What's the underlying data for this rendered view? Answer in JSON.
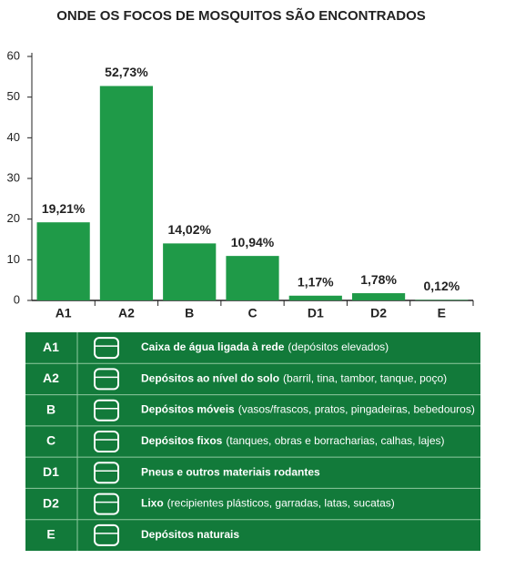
{
  "chart_data": {
    "type": "bar",
    "title": "ONDE OS FOCOS DE MOSQUITOS SÃO ENCONTRADOS",
    "categories": [
      "A1",
      "A2",
      "B",
      "C",
      "D1",
      "D2",
      "E"
    ],
    "values": [
      19.21,
      52.73,
      14.02,
      10.94,
      1.17,
      1.78,
      0.12
    ],
    "value_labels": [
      "19,21%",
      "52,73%",
      "14,02%",
      "10,94%",
      "1,17%",
      "1,78%",
      "0,12%"
    ],
    "color": "#1f9a48",
    "ylim": [
      0,
      60
    ],
    "yticks": [
      0,
      10,
      20,
      30,
      40,
      50,
      60
    ],
    "grid": false
  },
  "table": {
    "rows": [
      {
        "code": "A1",
        "title": "Caixa de água ligada à rede",
        "detail": "(depósitos elevados)"
      },
      {
        "code": "A2",
        "title": "Depósitos ao nível do solo",
        "detail": "(barril, tina, tambor, tanque, poço)"
      },
      {
        "code": "B",
        "title": "Depósitos móveis",
        "detail": "(vasos/frascos, pratos, pingadeiras, bebedouros)"
      },
      {
        "code": "C",
        "title": "Depósitos fixos",
        "detail": "(tanques, obras e borracharias, calhas, lajes)"
      },
      {
        "code": "D1",
        "title": "Pneus e outros materiais rodantes",
        "detail": null
      },
      {
        "code": "D2",
        "title": "Lixo",
        "detail": "(recipientes plásticos, garradas, latas, sucatas)"
      },
      {
        "code": "E",
        "title": "Depósitos naturais",
        "detail": null
      }
    ]
  }
}
